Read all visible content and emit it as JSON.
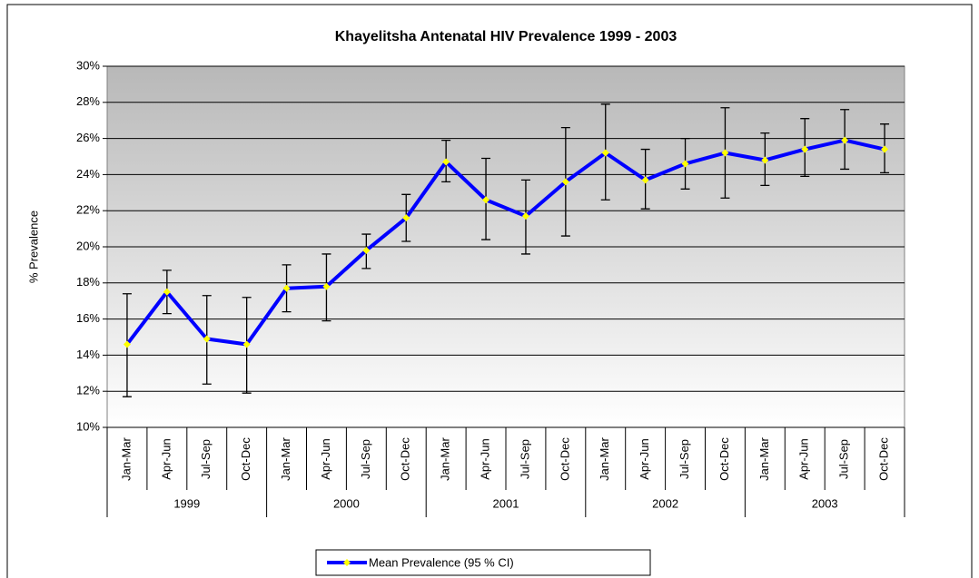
{
  "chart_data": {
    "type": "line",
    "title": "Khayelitsha Antenatal HIV Prevalence 1999 - 2003",
    "y_label": "% Prevalence",
    "categories": [
      "Jan-Mar",
      "Apr-Jun",
      "Jul-Sep",
      "Oct-Dec",
      "Jan-Mar",
      "Apr-Jun",
      "Jul-Sep",
      "Oct-Dec",
      "Jan-Mar",
      "Apr-Jun",
      "Jul-Sep",
      "Oct-Dec",
      "Jan-Mar",
      "Apr-Jun",
      "Jul-Sep",
      "Oct-Dec",
      "Jan-Mar",
      "Apr-Jun",
      "Jul-Sep",
      "Oct-Dec"
    ],
    "category_groups": [
      "1999",
      "2000",
      "2001",
      "2002",
      "2003"
    ],
    "series": [
      {
        "name": "Mean Prevalence (95 % CI)",
        "color": "#0000ff",
        "marker_color": "#ffff00",
        "values": [
          14.6,
          17.5,
          14.9,
          14.6,
          17.7,
          17.8,
          19.8,
          21.6,
          24.7,
          22.6,
          21.7,
          23.6,
          25.2,
          23.7,
          24.6,
          25.2,
          24.8,
          25.4,
          25.9,
          25.4
        ],
        "ci_low": [
          11.7,
          16.3,
          12.4,
          11.9,
          16.4,
          15.9,
          18.8,
          20.3,
          23.6,
          20.4,
          19.6,
          20.6,
          22.6,
          22.1,
          23.2,
          22.7,
          23.4,
          23.9,
          24.3,
          24.1
        ],
        "ci_high": [
          17.4,
          18.7,
          17.3,
          17.2,
          19.0,
          19.6,
          20.7,
          22.9,
          25.9,
          24.9,
          23.7,
          26.6,
          27.9,
          25.4,
          26.0,
          27.7,
          26.3,
          27.1,
          27.6,
          26.8
        ]
      }
    ],
    "ylim": [
      10,
      30
    ],
    "yticks": [
      {
        "value": 10,
        "label": "10%"
      },
      {
        "value": 12,
        "label": "12%"
      },
      {
        "value": 14,
        "label": "14%"
      },
      {
        "value": 16,
        "label": "16%"
      },
      {
        "value": 18,
        "label": "18%"
      },
      {
        "value": 20,
        "label": "20%"
      },
      {
        "value": 22,
        "label": "22%"
      },
      {
        "value": 24,
        "label": "24%"
      },
      {
        "value": 26,
        "label": "26%"
      },
      {
        "value": 28,
        "label": "28%"
      },
      {
        "value": 30,
        "label": "30%"
      }
    ],
    "grid": true,
    "legend": "bottom"
  }
}
